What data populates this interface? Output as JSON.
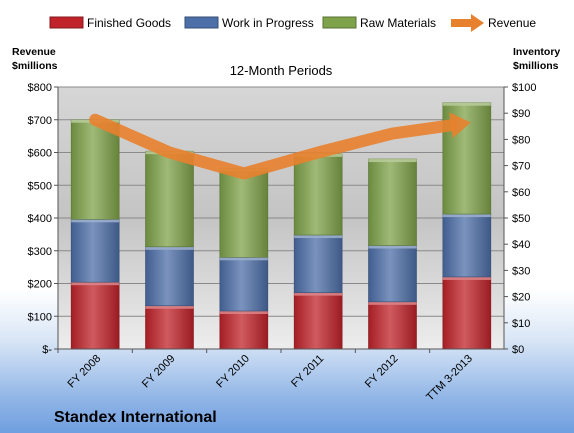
{
  "chart_data": {
    "type": "bar",
    "stacked": true,
    "subtitle": "12-Month Periods",
    "company": "Standex International",
    "categories": [
      "FY 2008",
      "FY 2009",
      "FY 2010",
      "FY 2011",
      "FY 2012",
      "TTM 3-2013"
    ],
    "y_left": {
      "label_line1": "Revenue",
      "label_line2": "$millions",
      "ylim": [
        0,
        800
      ],
      "ticks": [
        0,
        100,
        200,
        300,
        400,
        500,
        600,
        700,
        800
      ],
      "tick_labels": [
        "$-",
        "$100",
        "$200",
        "$300",
        "$400",
        "$500",
        "$600",
        "$700",
        "$800"
      ]
    },
    "y_right": {
      "label_line1": "Inventory",
      "label_line2": "$millions",
      "ylim": [
        0,
        100
      ],
      "ticks": [
        0,
        10,
        20,
        30,
        40,
        50,
        60,
        70,
        80,
        90,
        100
      ],
      "tick_labels": [
        "$0",
        "$10",
        "$20",
        "$30",
        "$40",
        "$50",
        "$60",
        "$70",
        "$80",
        "$90",
        "$100"
      ]
    },
    "series": [
      {
        "name": "Finished Goods",
        "axis": "right",
        "kind": "bar",
        "color": "#c0232a",
        "values": [
          25.5,
          16.5,
          14.5,
          21.5,
          18,
          27.5
        ]
      },
      {
        "name": "Work in Progress",
        "axis": "right",
        "kind": "bar",
        "color": "#4d6fa8",
        "values": [
          24,
          22.5,
          20.5,
          22,
          21.5,
          24
        ]
      },
      {
        "name": "Raw Materials",
        "axis": "right",
        "kind": "bar",
        "color": "#7fa34a",
        "values": [
          38,
          36.5,
          34,
          31,
          33,
          42.5
        ]
      },
      {
        "name": "Revenue",
        "axis": "left",
        "kind": "line",
        "color": "#e8812e",
        "values": [
          700,
          600,
          536,
          600,
          658,
          690
        ]
      }
    ],
    "grid": true,
    "legend_position": "top"
  }
}
